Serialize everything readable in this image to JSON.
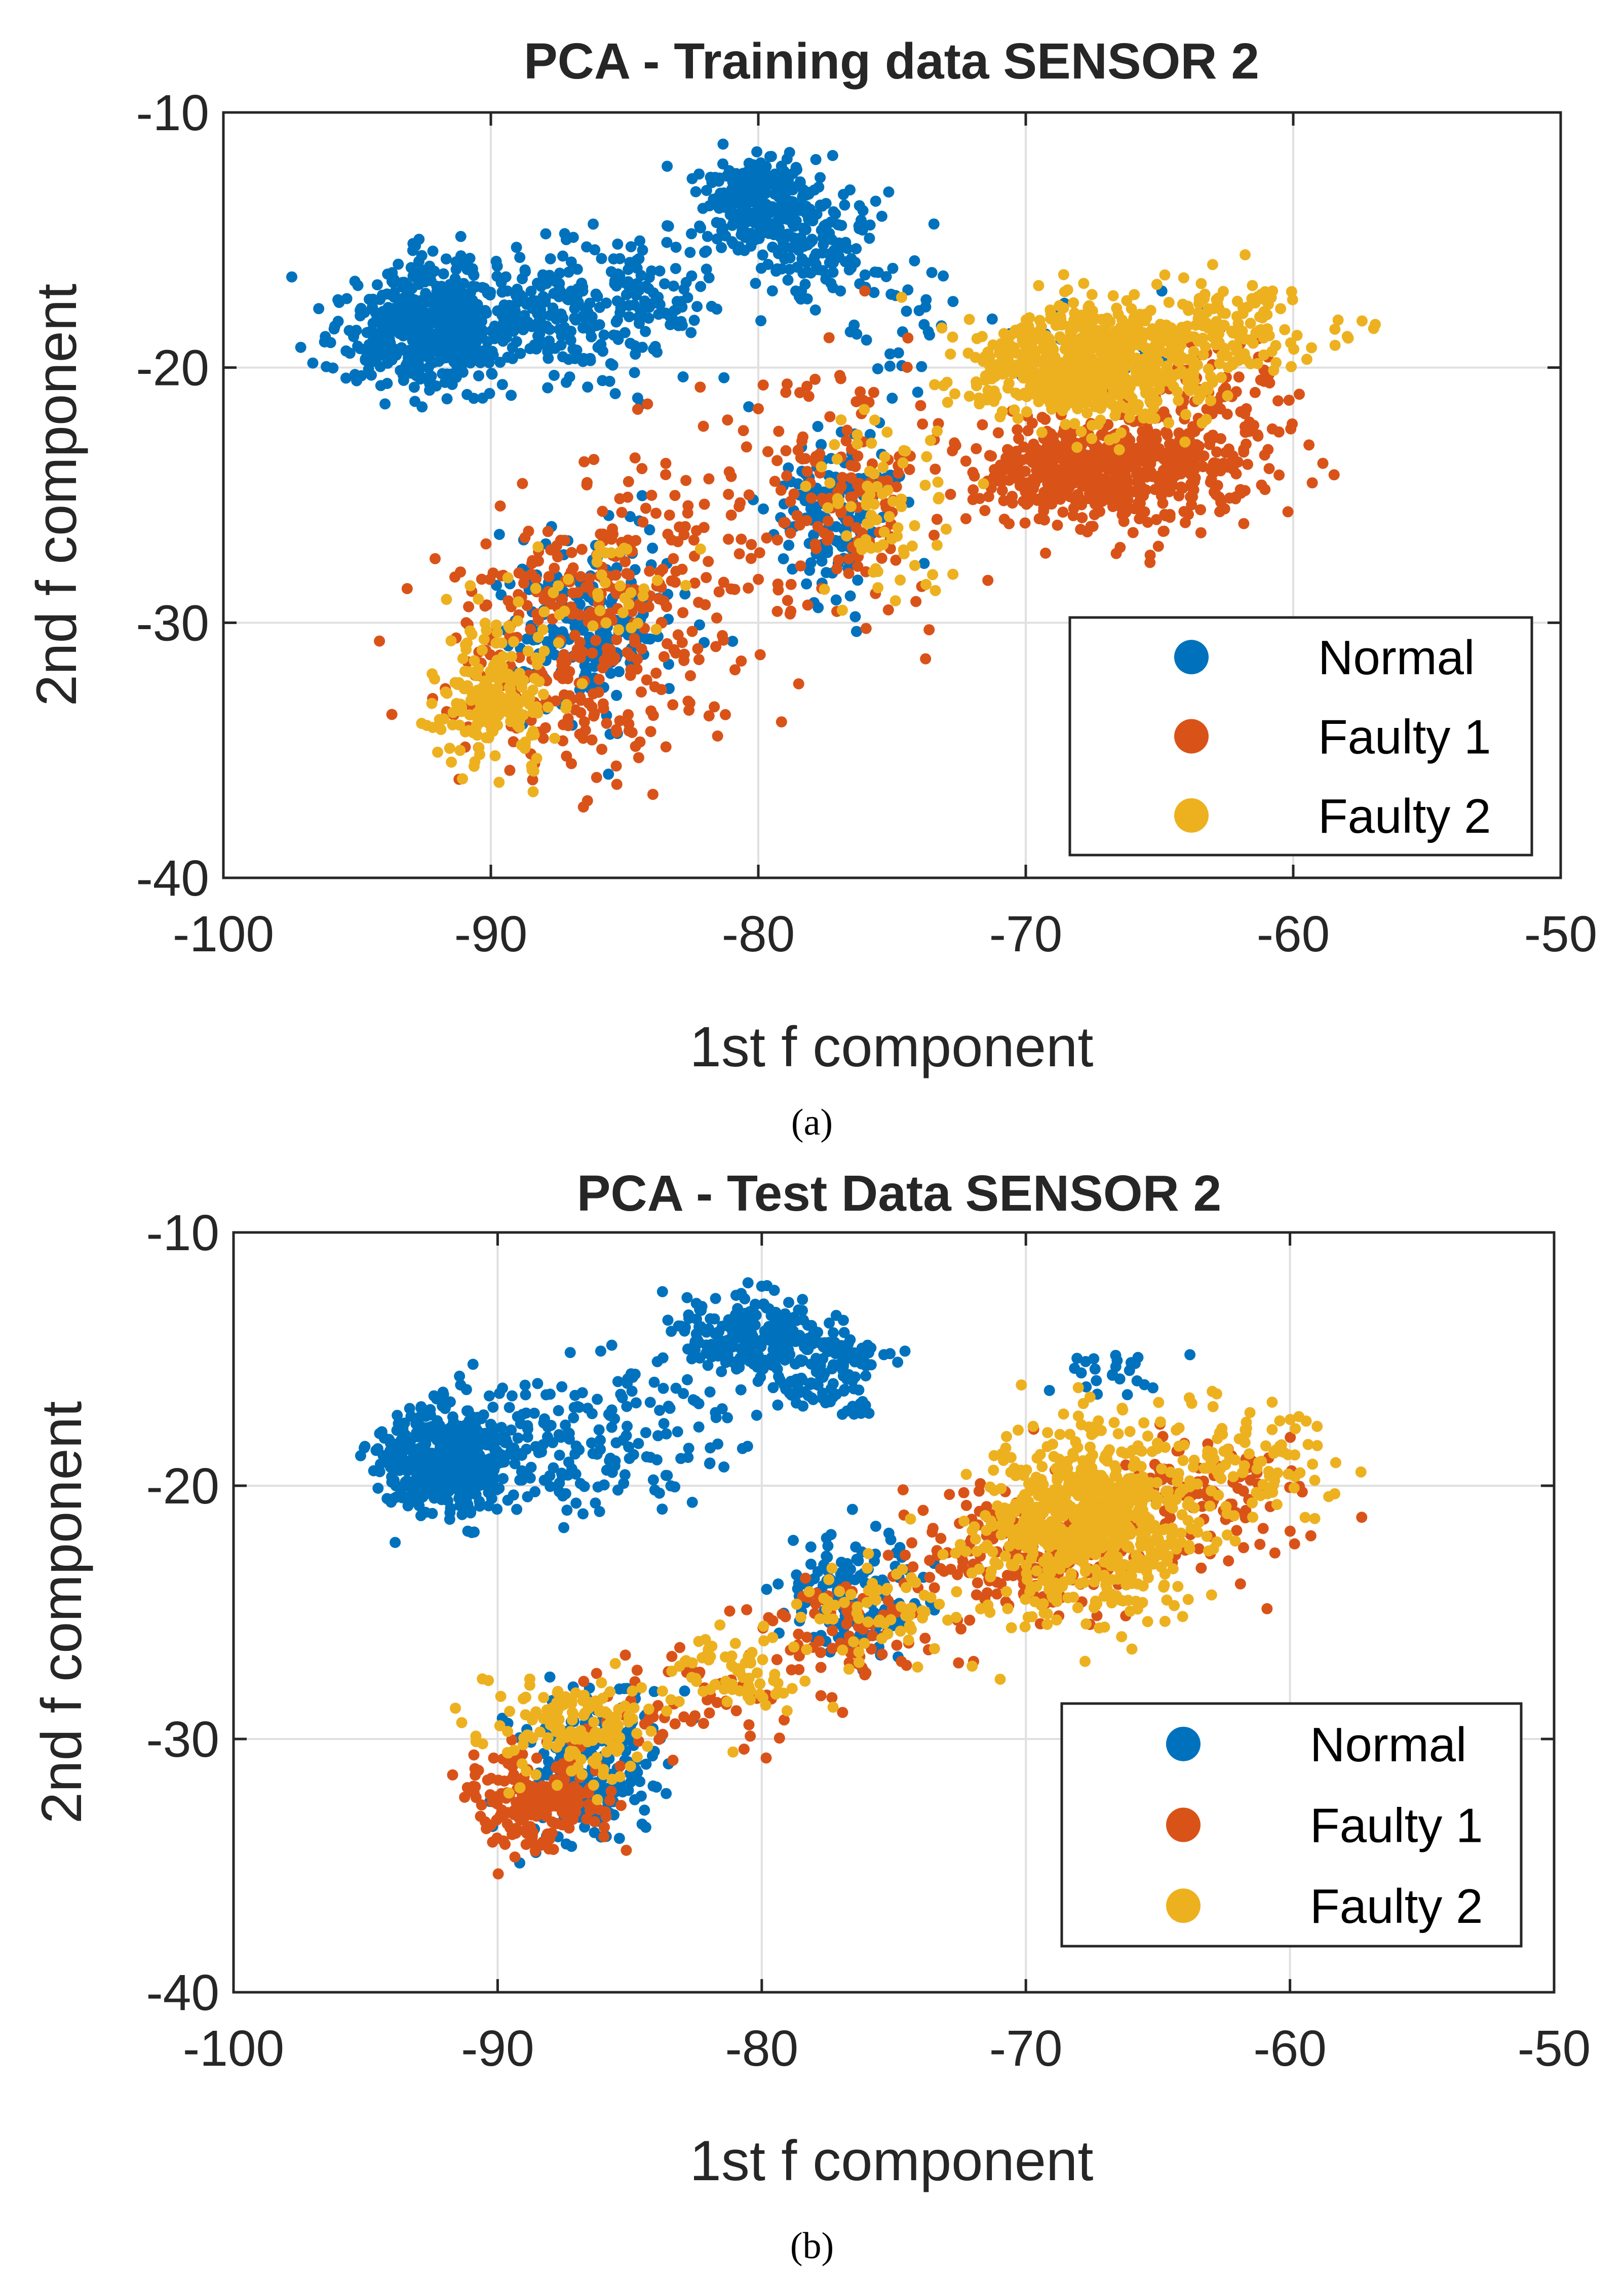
{
  "chart_data": [
    {
      "type": "scatter",
      "panel_label": "(a)",
      "title": "PCA - Training data SENSOR 2",
      "xlabel": "1st f component",
      "ylabel": "2nd f component",
      "xlim": [
        -100,
        -50
      ],
      "ylim": [
        -40,
        -10
      ],
      "xticks": [
        -100,
        -90,
        -80,
        -70,
        -60,
        -50
      ],
      "yticks": [
        -40,
        -30,
        -20,
        -10
      ],
      "grid": true,
      "legend_position": "bottom-right",
      "series": [
        {
          "name": "Normal",
          "color": "#0072BD",
          "clusters": [
            {
              "cx": -92.5,
              "cy": -18.5,
              "sx": 1.6,
              "sy": 1.2,
              "n": 520
            },
            {
              "cx": -88.0,
              "cy": -18.0,
              "sx": 2.2,
              "sy": 1.4,
              "n": 240
            },
            {
              "cx": -84.0,
              "cy": -17.0,
              "sx": 1.8,
              "sy": 1.5,
              "n": 90
            },
            {
              "cx": -80.2,
              "cy": -13.5,
              "sx": 1.1,
              "sy": 1.0,
              "n": 260
            },
            {
              "cx": -77.5,
              "cy": -15.0,
              "sx": 1.3,
              "sy": 1.2,
              "n": 120
            },
            {
              "cx": -75.0,
              "cy": -18.0,
              "sx": 1.5,
              "sy": 1.6,
              "n": 40
            },
            {
              "cx": -77.0,
              "cy": -25.5,
              "sx": 1.1,
              "sy": 1.5,
              "n": 150
            },
            {
              "cx": -86.5,
              "cy": -30.0,
              "sx": 1.6,
              "sy": 1.7,
              "n": 230
            },
            {
              "cx": -67.5,
              "cy": -19.0,
              "sx": 1.5,
              "sy": 0.8,
              "n": 40
            }
          ]
        },
        {
          "name": "Faulty 1",
          "color": "#D95319",
          "clusters": [
            {
              "cx": -67.0,
              "cy": -24.0,
              "sx": 2.5,
              "sy": 1.1,
              "n": 650
            },
            {
              "cx": -62.5,
              "cy": -21.5,
              "sx": 1.5,
              "sy": 1.2,
              "n": 80
            },
            {
              "cx": -77.0,
              "cy": -25.0,
              "sx": 2.0,
              "sy": 2.6,
              "n": 160
            },
            {
              "cx": -87.0,
              "cy": -31.0,
              "sx": 2.4,
              "sy": 2.6,
              "n": 280
            },
            {
              "cx": -83.0,
              "cy": -28.5,
              "sx": 1.8,
              "sy": 3.0,
              "n": 110
            }
          ]
        },
        {
          "name": "Faulty 2",
          "color": "#EDB120",
          "clusters": [
            {
              "cx": -67.5,
              "cy": -19.8,
              "sx": 2.2,
              "sy": 1.1,
              "n": 750
            },
            {
              "cx": -62.0,
              "cy": -18.5,
              "sx": 1.8,
              "sy": 0.9,
              "n": 120
            },
            {
              "cx": -75.5,
              "cy": -25.5,
              "sx": 1.4,
              "sy": 1.6,
              "n": 80
            },
            {
              "cx": -90.0,
              "cy": -33.0,
              "sx": 1.1,
              "sy": 1.5,
              "n": 190
            },
            {
              "cx": -86.0,
              "cy": -29.0,
              "sx": 1.5,
              "sy": 1.4,
              "n": 40
            }
          ]
        }
      ]
    },
    {
      "type": "scatter",
      "panel_label": "(b)",
      "title": "PCA - Test Data SENSOR 2",
      "xlabel": "1st f component",
      "ylabel": "2nd f component",
      "xlim": [
        -100,
        -50
      ],
      "ylim": [
        -40,
        -10
      ],
      "xticks": [
        -100,
        -90,
        -80,
        -70,
        -60,
        -50
      ],
      "yticks": [
        -40,
        -30,
        -20,
        -10
      ],
      "grid": true,
      "legend_position": "bottom-right",
      "series": [
        {
          "name": "Normal",
          "color": "#0072BD",
          "clusters": [
            {
              "cx": -92.0,
              "cy": -19.0,
              "sx": 1.3,
              "sy": 1.0,
              "n": 480
            },
            {
              "cx": -88.0,
              "cy": -18.5,
              "sx": 1.8,
              "sy": 1.4,
              "n": 120
            },
            {
              "cx": -84.0,
              "cy": -17.5,
              "sx": 1.8,
              "sy": 1.5,
              "n": 70
            },
            {
              "cx": -80.5,
              "cy": -14.0,
              "sx": 1.3,
              "sy": 0.8,
              "n": 220
            },
            {
              "cx": -77.5,
              "cy": -15.5,
              "sx": 1.2,
              "sy": 0.9,
              "n": 140
            },
            {
              "cx": -76.5,
              "cy": -24.5,
              "sx": 1.2,
              "sy": 1.4,
              "n": 140
            },
            {
              "cx": -86.5,
              "cy": -31.0,
              "sx": 1.3,
              "sy": 1.6,
              "n": 220
            },
            {
              "cx": -67.0,
              "cy": -15.5,
              "sx": 1.2,
              "sy": 0.7,
              "n": 25
            }
          ]
        },
        {
          "name": "Faulty 1",
          "color": "#D95319",
          "clusters": [
            {
              "cx": -70.0,
              "cy": -22.5,
              "sx": 2.0,
              "sy": 1.3,
              "n": 240
            },
            {
              "cx": -63.0,
              "cy": -20.5,
              "sx": 2.0,
              "sy": 1.3,
              "n": 110
            },
            {
              "cx": -76.5,
              "cy": -25.5,
              "sx": 2.0,
              "sy": 1.2,
              "n": 90
            },
            {
              "cx": -88.5,
              "cy": -32.5,
              "sx": 1.4,
              "sy": 1.1,
              "n": 210
            },
            {
              "cx": -83.0,
              "cy": -28.5,
              "sx": 2.0,
              "sy": 1.0,
              "n": 60
            }
          ]
        },
        {
          "name": "Faulty 2",
          "color": "#EDB120",
          "clusters": [
            {
              "cx": -67.5,
              "cy": -21.5,
              "sx": 2.1,
              "sy": 1.7,
              "n": 720
            },
            {
              "cx": -61.5,
              "cy": -19.0,
              "sx": 1.8,
              "sy": 1.1,
              "n": 100
            },
            {
              "cx": -75.5,
              "cy": -25.0,
              "sx": 1.6,
              "sy": 1.0,
              "n": 70
            },
            {
              "cx": -81.0,
              "cy": -27.5,
              "sx": 1.6,
              "sy": 0.8,
              "n": 70
            },
            {
              "cx": -87.0,
              "cy": -29.5,
              "sx": 1.6,
              "sy": 1.0,
              "n": 150
            }
          ]
        }
      ]
    }
  ]
}
